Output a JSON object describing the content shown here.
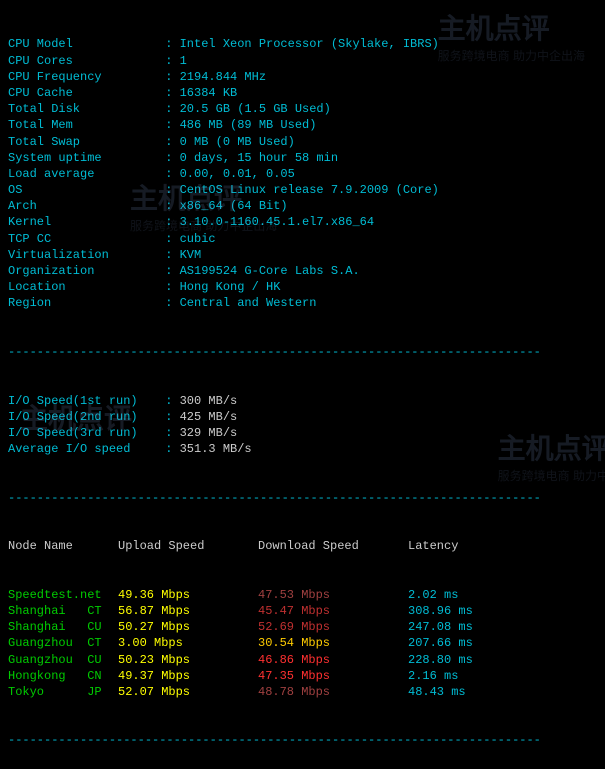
{
  "dash_line": "--------------------------------------------------------------------------",
  "sysinfo": [
    {
      "label": "CPU Model",
      "value": "Intel Xeon Processor (Skylake, IBRS)"
    },
    {
      "label": "CPU Cores",
      "value": "1"
    },
    {
      "label": "CPU Frequency",
      "value": "2194.844 MHz"
    },
    {
      "label": "CPU Cache",
      "value": "16384 KB"
    },
    {
      "label": "Total Disk",
      "value": "20.5 GB (1.5 GB Used)"
    },
    {
      "label": "Total Mem",
      "value": "486 MB (89 MB Used)"
    },
    {
      "label": "Total Swap",
      "value": "0 MB (0 MB Used)"
    },
    {
      "label": "System uptime",
      "value": "0 days, 15 hour 58 min"
    },
    {
      "label": "Load average",
      "value": "0.00, 0.01, 0.05"
    },
    {
      "label": "OS",
      "value": "CentOS Linux release 7.9.2009 (Core)"
    },
    {
      "label": "Arch",
      "value": "x86_64 (64 Bit)"
    },
    {
      "label": "Kernel",
      "value": "3.10.0-1160.45.1.el7.x86_64"
    },
    {
      "label": "TCP CC",
      "value": "cubic"
    },
    {
      "label": "Virtualization",
      "value": "KVM"
    },
    {
      "label": "Organization",
      "value": "AS199524 G-Core Labs S.A."
    },
    {
      "label": "Location",
      "value": "Hong Kong / HK"
    },
    {
      "label": "Region",
      "value": "Central and Western"
    }
  ],
  "iospeed": [
    {
      "label": "I/O Speed(1st run)",
      "value": "300 MB/s"
    },
    {
      "label": "I/O Speed(2nd run)",
      "value": "425 MB/s"
    },
    {
      "label": "I/O Speed(3rd run)",
      "value": "329 MB/s"
    },
    {
      "label": "Average I/O speed",
      "value": "351.3 MB/s"
    }
  ],
  "speed_header": {
    "node": "Node Name",
    "upload": "Upload Speed",
    "download": "Download Speed",
    "latency": "Latency"
  },
  "speedtest": [
    {
      "name": "Speedtest.net",
      "up": "49.36 Mbps",
      "down": "47.53 Mbps",
      "lat": "2.02 ms"
    },
    {
      "name": "Shanghai   CT",
      "up": "56.87 Mbps",
      "down": "45.47 Mbps",
      "lat": "308.96 ms"
    },
    {
      "name": "Shanghai   CU",
      "up": "50.27 Mbps",
      "down": "52.69 Mbps",
      "lat": "247.08 ms"
    },
    {
      "name": "Guangzhou  CT",
      "up": "3.00 Mbps",
      "down": "30.54 Mbps",
      "lat": "207.66 ms"
    },
    {
      "name": "Guangzhou  CU",
      "up": "50.23 Mbps",
      "down": "46.86 Mbps",
      "lat": "228.80 ms"
    },
    {
      "name": "Hongkong   CN",
      "up": "49.37 Mbps",
      "down": "47.35 Mbps",
      "lat": "2.16 ms"
    },
    {
      "name": "Tokyo      JP",
      "up": "52.07 Mbps",
      "down": "48.78 Mbps",
      "lat": "48.43 ms"
    }
  ],
  "colors": {
    "background": "#000000",
    "cyan": "#00bcd4",
    "green": "#00cc00",
    "yellow": "#ffff00",
    "red": "#ff3030",
    "header_text": "#cccccc"
  },
  "watermark_text": "主机点评",
  "watermark_sub": "服务跨境电商 助力中企出海"
}
